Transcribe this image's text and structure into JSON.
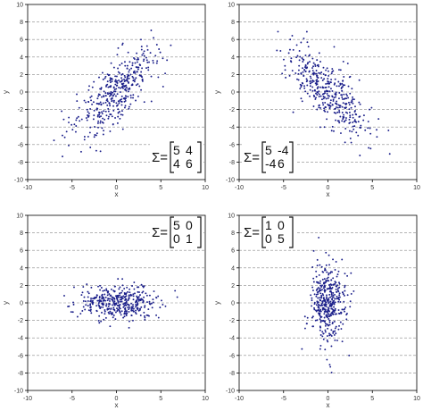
{
  "chart_data": [
    {
      "type": "scatter",
      "panel": "top-left",
      "xlabel": "x",
      "ylabel": "y",
      "xlim": [
        -10,
        10
      ],
      "ylim": [
        -10,
        10
      ],
      "xticks": [
        -10,
        -5,
        0,
        5,
        10
      ],
      "yticks": [
        -10,
        -8,
        -6,
        -4,
        -2,
        0,
        2,
        4,
        6,
        8,
        10
      ],
      "grid": "horizontal-dashed",
      "mean": [
        0,
        0
      ],
      "covariance": [
        [
          5,
          4
        ],
        [
          4,
          6
        ]
      ],
      "n_points": 400,
      "annotation": {
        "symbol": "Σ=",
        "rows": [
          [
            "5",
            "4"
          ],
          [
            "4",
            "6"
          ]
        ],
        "placement": "bottom-right"
      }
    },
    {
      "type": "scatter",
      "panel": "top-right",
      "xlabel": "x",
      "ylabel": "y",
      "xlim": [
        -10,
        10
      ],
      "ylim": [
        -10,
        10
      ],
      "xticks": [
        -10,
        -5,
        0,
        5,
        10
      ],
      "yticks": [
        -10,
        -8,
        -6,
        -4,
        -2,
        0,
        2,
        4,
        6,
        8,
        10
      ],
      "grid": "horizontal-dashed",
      "mean": [
        0,
        0
      ],
      "covariance": [
        [
          5,
          -4
        ],
        [
          -4,
          6
        ]
      ],
      "n_points": 400,
      "annotation": {
        "symbol": "Σ=",
        "rows": [
          [
            "5",
            "-4"
          ],
          [
            "-4",
            "6"
          ]
        ],
        "placement": "bottom-left"
      }
    },
    {
      "type": "scatter",
      "panel": "bottom-left",
      "xlabel": "x",
      "ylabel": "y",
      "xlim": [
        -10,
        10
      ],
      "ylim": [
        -10,
        10
      ],
      "xticks": [
        -10,
        -5,
        0,
        5,
        10
      ],
      "yticks": [
        -10,
        -8,
        -6,
        -4,
        -2,
        0,
        2,
        4,
        6,
        8,
        10
      ],
      "grid": "horizontal-dashed",
      "mean": [
        0,
        0
      ],
      "covariance": [
        [
          5,
          0
        ],
        [
          0,
          1
        ]
      ],
      "n_points": 400,
      "annotation": {
        "symbol": "Σ=",
        "rows": [
          [
            "5",
            "0"
          ],
          [
            "0",
            "1"
          ]
        ],
        "placement": "top-right"
      }
    },
    {
      "type": "scatter",
      "panel": "bottom-right",
      "xlabel": "x",
      "ylabel": "y",
      "xlim": [
        -10,
        10
      ],
      "ylim": [
        -10,
        10
      ],
      "xticks": [
        -10,
        -5,
        0,
        5,
        10
      ],
      "yticks": [
        -10,
        -8,
        -6,
        -4,
        -2,
        0,
        2,
        4,
        6,
        8,
        10
      ],
      "grid": "horizontal-dashed",
      "mean": [
        0,
        0
      ],
      "covariance": [
        [
          1,
          0
        ],
        [
          0,
          5
        ]
      ],
      "n_points": 400,
      "annotation": {
        "symbol": "Σ=",
        "rows": [
          [
            "1",
            "0"
          ],
          [
            "0",
            "5"
          ]
        ],
        "placement": "top-left"
      }
    }
  ],
  "colors": {
    "points": "#1b1f8a",
    "grid": "#888888",
    "axes": "#000000",
    "text": "#333333"
  }
}
